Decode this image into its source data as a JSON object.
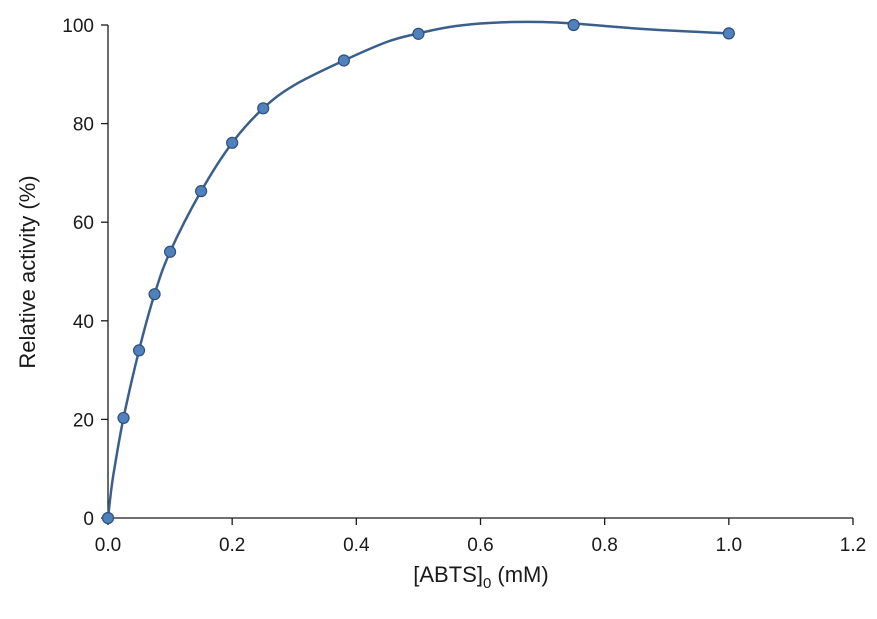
{
  "chart_data": {
    "type": "scatter",
    "title": "",
    "xlabel": "[ABTS]",
    "xlabel_subscript": "0",
    "xlabel_suffix": " (mM)",
    "ylabel": "Relative activity (%)",
    "xlim": [
      0,
      1.2
    ],
    "ylim": [
      0,
      100
    ],
    "x_ticks": [
      "0.0",
      "0.2",
      "0.4",
      "0.6",
      "0.8",
      "1.0",
      "1.2"
    ],
    "y_ticks": [
      "0",
      "20",
      "40",
      "60",
      "80",
      "100"
    ],
    "grid": false,
    "legend": "none",
    "series": [
      {
        "x": [
          0,
          0.025,
          0.05,
          0.075,
          0.1,
          0.15,
          0.2,
          0.25,
          0.38,
          0.5,
          0.75,
          1.0
        ],
        "y": [
          0,
          20.3,
          34.0,
          45.4,
          54.0,
          66.3,
          76.1,
          83.1,
          92.8,
          98.2,
          100,
          98.3
        ],
        "marker_color": "#4f81bd",
        "marker_edge": "#2f4e7a"
      }
    ],
    "fit_curve": {
      "x": [
        0,
        0.005,
        0.01,
        0.025,
        0.05,
        0.075,
        0.1,
        0.15,
        0.2,
        0.25,
        0.3,
        0.38,
        0.45,
        0.5,
        0.55,
        0.6,
        0.65,
        0.7,
        0.75,
        0.8,
        0.85,
        0.9,
        0.95,
        1.0
      ],
      "y": [
        0,
        5.5,
        9.8,
        20.3,
        34.0,
        45.4,
        54.0,
        66.3,
        76.1,
        83.1,
        87.8,
        92.8,
        96.6,
        98.3,
        99.6,
        100.3,
        100.6,
        100.6,
        100.3,
        99.8,
        99.3,
        98.9,
        98.6,
        98.3
      ],
      "color": "#3a5f8c"
    },
    "axis_color": "#1a1a1a"
  }
}
